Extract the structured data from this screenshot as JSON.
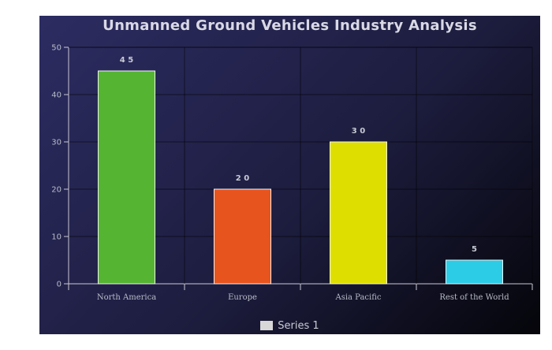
{
  "chart_data": {
    "type": "bar",
    "title": "Unmanned Ground Vehicles Industry Analysis",
    "xlabel": "",
    "ylabel": "",
    "categories": [
      "North America",
      "Europe",
      "Asia Pacific",
      "Rest of the World"
    ],
    "series": [
      {
        "name": "Series 1",
        "values": [
          45,
          20,
          30,
          5
        ],
        "data_labels": [
          "4 5",
          "2 0",
          "3 0",
          "5"
        ]
      }
    ],
    "bar_colors": [
      "#55b533",
      "#e8541e",
      "#dede00",
      "#2ccbe6"
    ],
    "legend_color": "#d8d8d8",
    "ylim": [
      0,
      50
    ],
    "yticks": [
      0,
      10,
      20,
      30,
      40,
      50
    ],
    "grid": true,
    "legend_position": "bottom"
  }
}
